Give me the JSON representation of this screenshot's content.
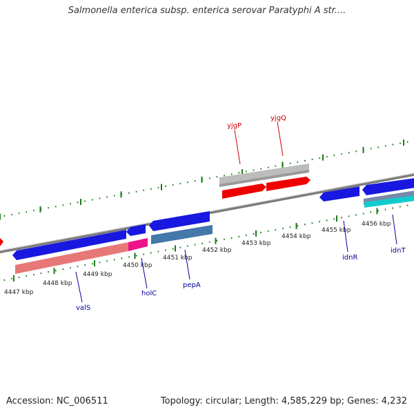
{
  "title": "Salmonella enterica subsp. enterica serovar Paratyphi A str....",
  "footer": {
    "accession": "Accession: NC_006511",
    "summary": "Topology: circular; Length: 4,585,229 bp; Genes: 4,232"
  },
  "colors": {
    "backbone": "#7a7a7a",
    "tick": "#1a7a1a",
    "red_label": "#cc0000",
    "blue_label": "#000099",
    "forward_gene": "#ee0000",
    "forward_pseudo": "#bcbcbc",
    "reverse_gene": "#1818e0",
    "reverse_rna": "#e87878",
    "reverse_magenta": "#ee1188",
    "reverse_steel": "#4477aa",
    "reverse_cyan": "#11cccc"
  },
  "scale_labels": [
    "4447 kbp",
    "4448 kbp",
    "4449 kbp",
    "4450 kbp",
    "4451 kbp",
    "4452 kbp",
    "4453 kbp",
    "4454 kbp",
    "4455 kbp",
    "4456 kbp"
  ],
  "gene_labels": {
    "yjgP": "yjgP",
    "yjgQ": "yjgQ",
    "valS": "valS",
    "holC": "holC",
    "pepA": "pepA",
    "idnR": "idnR",
    "idnT": "idnT"
  }
}
